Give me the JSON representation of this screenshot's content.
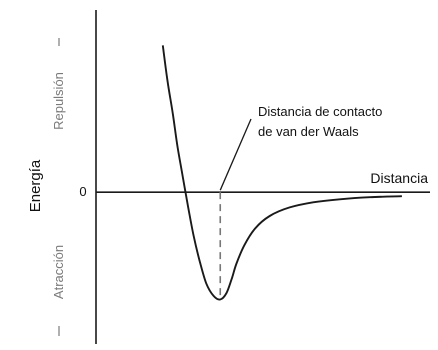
{
  "chart_data": {
    "type": "line",
    "title": "",
    "ylabel": "Energía",
    "y_up_label": "Repulsión",
    "y_down_label": "Atracción",
    "xlabel": "Distancia",
    "zero_tick_label": "0",
    "annotation": [
      "Distancia de contacto",
      "de van der Waals"
    ],
    "grid": false,
    "legend": "none",
    "colors": {
      "curve": "#1a1a1a",
      "axis": "#1a1a1a",
      "dashed": "#777777",
      "side_labels": "#7a7a7a"
    },
    "series": [
      {
        "x": [
          1.0,
          1.07,
          1.15,
          1.22,
          1.3,
          1.38,
          1.46,
          1.55,
          1.65,
          1.76,
          1.86,
          1.95,
          2.03,
          2.1,
          2.22,
          2.38,
          2.6,
          2.9,
          3.25,
          3.65,
          4.1,
          4.58
        ],
        "y": [
          2.9,
          2.2,
          1.55,
          0.9,
          0.3,
          -0.3,
          -0.85,
          -1.35,
          -1.8,
          -2.05,
          -2.12,
          -2.0,
          -1.72,
          -1.42,
          -1.05,
          -0.72,
          -0.47,
          -0.3,
          -0.2,
          -0.14,
          -0.1,
          -0.08
        ]
      }
    ],
    "contact_distance": {
      "x": 1.86,
      "y_min": -2.12
    },
    "xlim": [
      0,
      5.0
    ],
    "ylim": [
      -3.0,
      3.6
    ]
  }
}
